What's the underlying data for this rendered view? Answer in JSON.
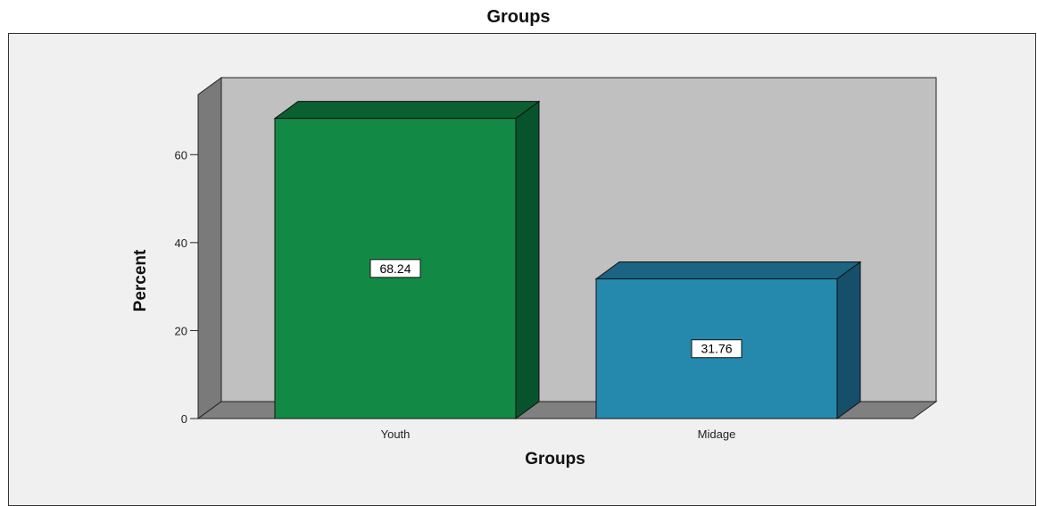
{
  "chart_data": {
    "type": "bar",
    "title": "Groups",
    "xlabel": "Groups",
    "ylabel": "Percent",
    "categories": [
      "Youth",
      "Midage"
    ],
    "values": [
      68.24,
      31.76
    ],
    "data_labels": [
      "68.24",
      "31.76"
    ],
    "ylim": [
      0,
      70
    ],
    "yticks": [
      0,
      20,
      40,
      60
    ],
    "grid": false,
    "style": "3d",
    "bar_colors": [
      "#128a45",
      "#2589ae"
    ],
    "bar_side_colors": [
      "#07532b",
      "#164f6a"
    ],
    "bar_top_colors": [
      "#0b6032",
      "#1b6482"
    ],
    "wall_color": "#c0c0c0",
    "side_wall_color": "#7a7a7a",
    "floor_color": "#808080",
    "background_color": "#f0f0f0"
  }
}
